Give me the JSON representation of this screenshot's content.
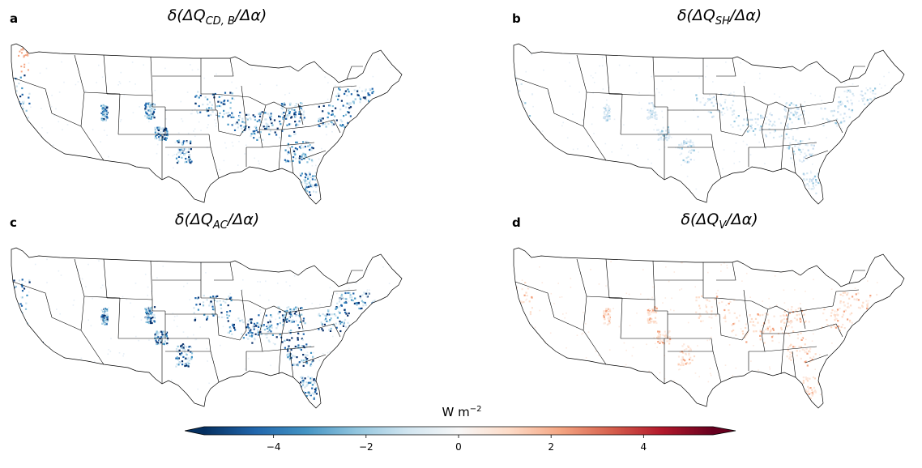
{
  "panels": [
    {
      "letter": "a",
      "title_prefix": "δ(ΔQ",
      "title_sub": "CD, B",
      "title_suffix": "/Δα)",
      "pattern": "strong_neg"
    },
    {
      "letter": "b",
      "title_prefix": "δ(ΔQ",
      "title_sub": "SH",
      "title_suffix": "/Δα)",
      "pattern": "weak_neg"
    },
    {
      "letter": "c",
      "title_prefix": "δ(ΔQ",
      "title_sub": "AC",
      "title_suffix": "/Δα)",
      "pattern": "strong_neg"
    },
    {
      "letter": "d",
      "title_prefix": "δ(ΔQ",
      "title_sub": "V",
      "title_suffix": "/Δα)",
      "pattern": "weak_pos"
    }
  ],
  "colorbar": {
    "label_base": "W m",
    "label_exp": "−2",
    "range": [
      -5.5,
      5.5
    ],
    "ticks": [
      {
        "value": -4,
        "label": "−4"
      },
      {
        "value": -2,
        "label": "−2"
      },
      {
        "value": 0,
        "label": "0"
      },
      {
        "value": 2,
        "label": "2"
      },
      {
        "value": 4,
        "label": "4"
      }
    ],
    "colormap": "RdBu_r",
    "extend": "both"
  },
  "colors": {
    "strong_blue": "#08306b",
    "mid_blue": "#2166ac",
    "light_blue": "#92c5de",
    "pale_blue": "#d1e5f0",
    "pale_red": "#fddbc7",
    "light_red": "#f4a582",
    "state_border": "#000000"
  }
}
